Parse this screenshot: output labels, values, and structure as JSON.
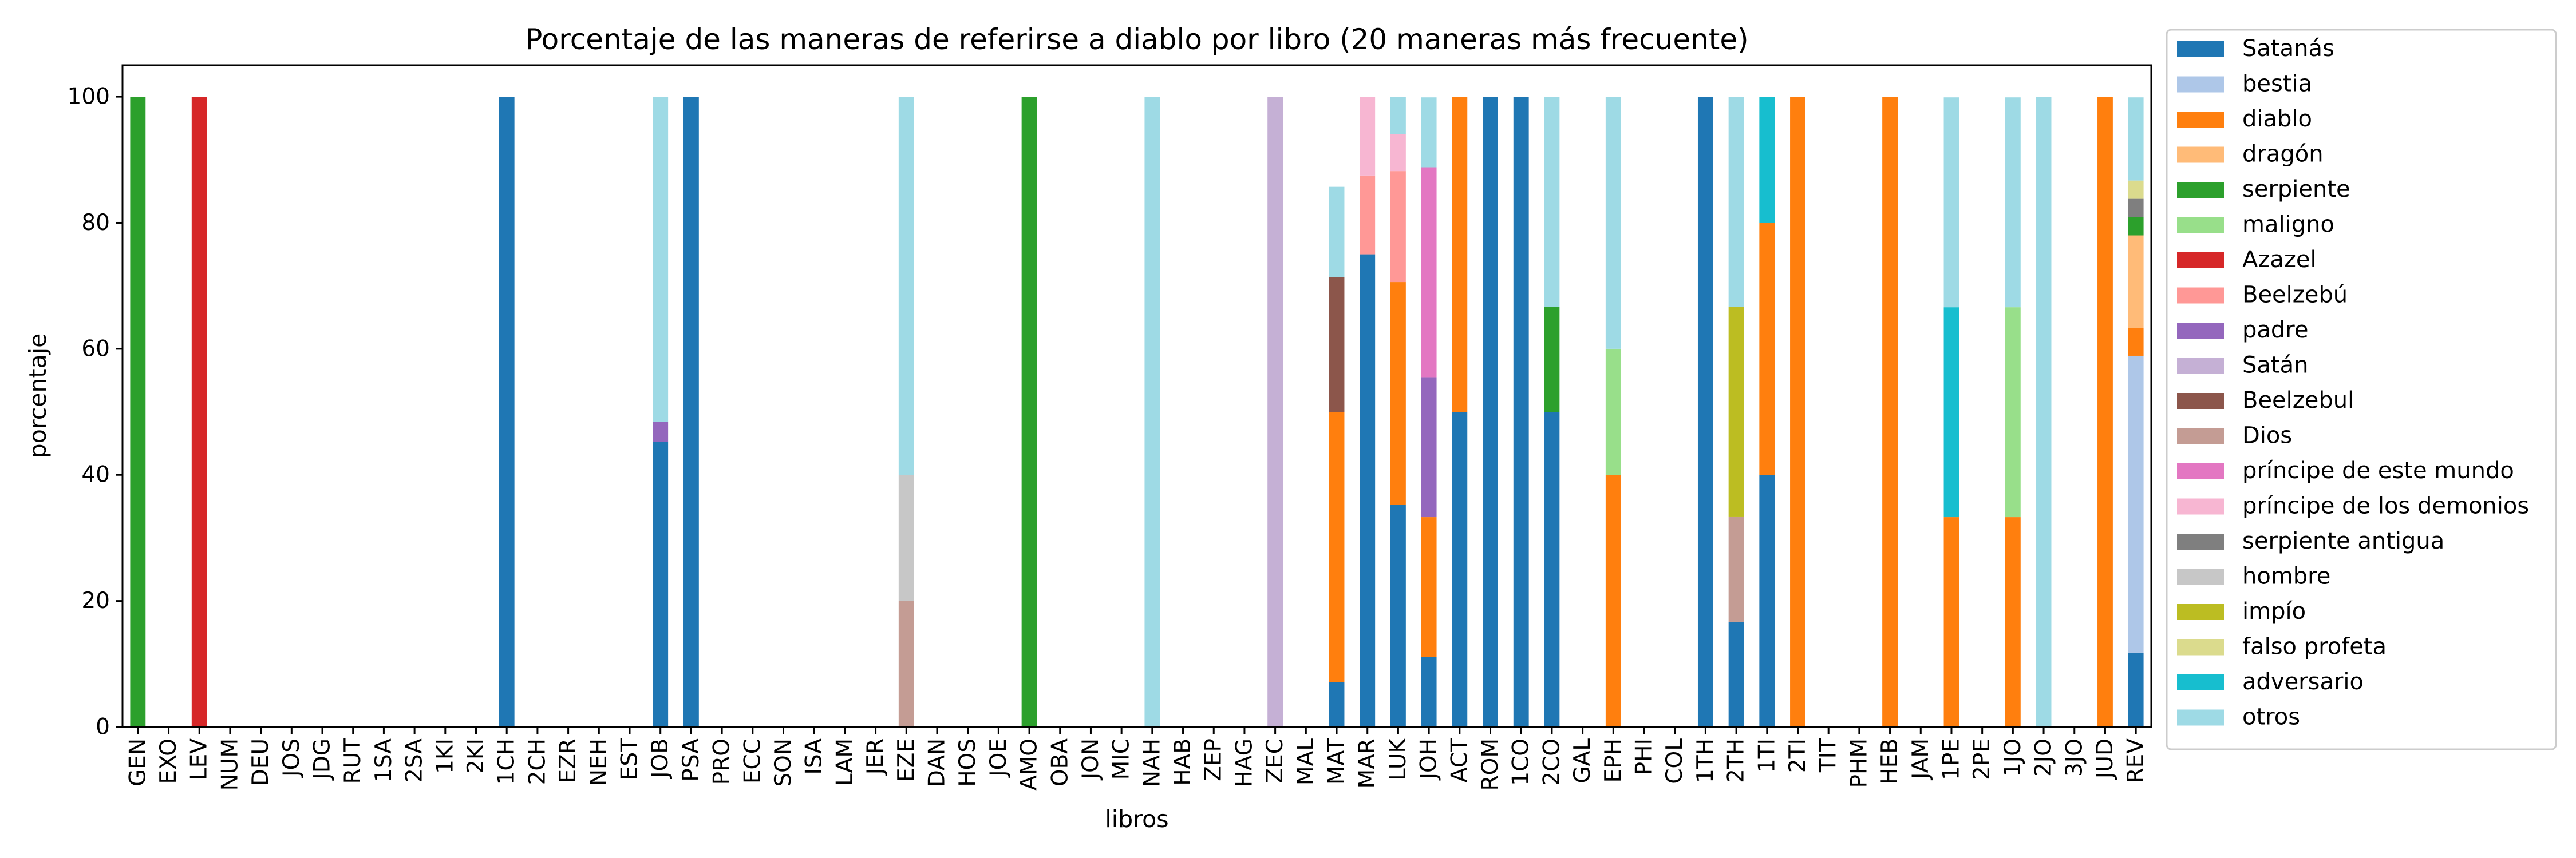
{
  "chart_data": {
    "type": "bar",
    "stacked": true,
    "title": "Porcentaje de las maneras de referirse a diablo por libro (20 maneras más frecuente)",
    "xlabel": "libros",
    "ylabel": "porcentaje",
    "ylim": [
      0,
      105
    ],
    "yticks": [
      0,
      20,
      40,
      60,
      80,
      100
    ],
    "grid": false,
    "legend_position": "right-outside",
    "categories": [
      "GEN",
      "EXO",
      "LEV",
      "NUM",
      "DEU",
      "JOS",
      "JDG",
      "RUT",
      "1SA",
      "2SA",
      "1KI",
      "2KI",
      "1CH",
      "2CH",
      "EZR",
      "NEH",
      "EST",
      "JOB",
      "PSA",
      "PRO",
      "ECC",
      "SON",
      "ISA",
      "LAM",
      "JER",
      "EZE",
      "DAN",
      "HOS",
      "JOE",
      "AMO",
      "OBA",
      "JON",
      "MIC",
      "NAH",
      "HAB",
      "ZEP",
      "HAG",
      "ZEC",
      "MAL",
      "MAT",
      "MAR",
      "LUK",
      "JOH",
      "ACT",
      "ROM",
      "1CO",
      "2CO",
      "GAL",
      "EPH",
      "PHI",
      "COL",
      "1TH",
      "2TH",
      "1TI",
      "2TI",
      "TIT",
      "PHM",
      "HEB",
      "JAM",
      "1PE",
      "2PE",
      "1JO",
      "2JO",
      "3JO",
      "JUD",
      "REV"
    ],
    "series": [
      {
        "name": "Satanás",
        "color": "#1f77b4",
        "values": {
          "1CH": 100,
          "JOB": 45.2,
          "PSA": 100,
          "MAT": 7.1,
          "MAR": 75,
          "LUK": 35.3,
          "JOH": 11.1,
          "ACT": 50,
          "ROM": 100,
          "1CO": 100,
          "2CO": 50,
          "1TH": 100,
          "2TH": 16.7,
          "1TI": 40,
          "REV": 11.8
        }
      },
      {
        "name": "bestia",
        "color": "#aec7e8",
        "values": {
          "REV": 47.1
        }
      },
      {
        "name": "diablo",
        "color": "#ff7f0e",
        "values": {
          "MAT": 42.9,
          "LUK": 35.3,
          "JOH": 22.2,
          "ACT": 50,
          "EPH": 40,
          "1TI": 40,
          "2TI": 100,
          "HEB": 100,
          "1PE": 33.3,
          "1JO": 33.3,
          "JUD": 100,
          "REV": 4.4
        }
      },
      {
        "name": "dragón",
        "color": "#ffbb78",
        "values": {
          "REV": 14.7
        }
      },
      {
        "name": "serpiente",
        "color": "#2ca02c",
        "values": {
          "GEN": 100,
          "AMO": 100,
          "2CO": 16.7,
          "REV": 2.9
        }
      },
      {
        "name": "maligno",
        "color": "#98df8a",
        "values": {
          "EPH": 20,
          "1JO": 33.3
        }
      },
      {
        "name": "Azazel",
        "color": "#d62728",
        "values": {
          "LEV": 100
        }
      },
      {
        "name": "Beelzebú",
        "color": "#ff9896",
        "values": {
          "MAR": 12.5,
          "LUK": 17.6
        }
      },
      {
        "name": "padre",
        "color": "#9467bd",
        "values": {
          "JOB": 3.2,
          "JOH": 22.2
        }
      },
      {
        "name": "Satán",
        "color": "#c5b0d5",
        "values": {
          "ZEC": 100
        }
      },
      {
        "name": "Beelzebul",
        "color": "#8c564b",
        "values": {
          "MAT": 21.4
        }
      },
      {
        "name": "Dios",
        "color": "#c49c94",
        "values": {
          "EZE": 20,
          "2TH": 16.7
        }
      },
      {
        "name": "príncipe de este mundo",
        "color": "#e377c2",
        "values": {
          "JOH": 33.3
        }
      },
      {
        "name": "príncipe de los demonios",
        "color": "#f7b6d2",
        "values": {
          "MAR": 12.5,
          "LUK": 5.9
        }
      },
      {
        "name": "serpiente antigua",
        "color": "#7f7f7f",
        "values": {
          "REV": 2.9
        }
      },
      {
        "name": "hombre",
        "color": "#c7c7c7",
        "values": {
          "EZE": 20
        }
      },
      {
        "name": "impío",
        "color": "#bcbd22",
        "values": {
          "2TH": 33.3
        }
      },
      {
        "name": "falso profeta",
        "color": "#dbdb8d",
        "values": {
          "REV": 2.9
        }
      },
      {
        "name": "adversario",
        "color": "#17becf",
        "values": {
          "1TI": 20,
          "1PE": 33.3
        }
      },
      {
        "name": "otros",
        "color": "#9edae5",
        "values": {
          "JOB": 51.6,
          "EZE": 60,
          "NAH": 100,
          "MAT": 14.3,
          "LUK": 5.9,
          "JOH": 11.1,
          "2CO": 33.3,
          "EPH": 40,
          "2TH": 33.3,
          "1PE": 33.3,
          "1JO": 33.3,
          "2JO": 100,
          "REV": 13.2
        }
      }
    ]
  }
}
